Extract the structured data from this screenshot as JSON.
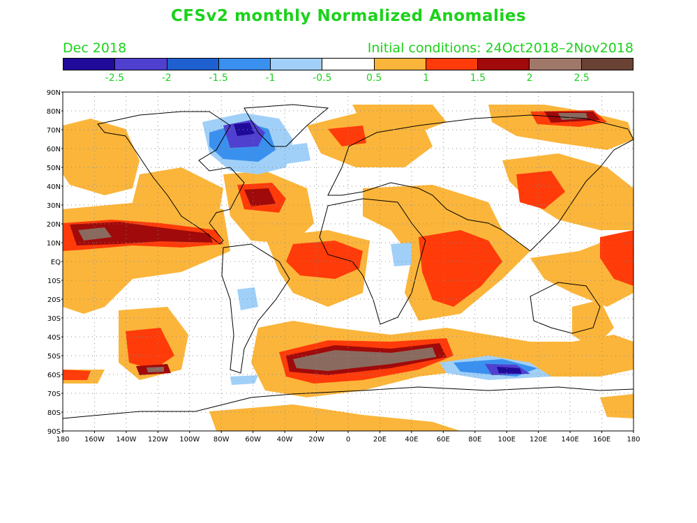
{
  "title": "CFSv2 monthly Normalized Anomalies",
  "valid_month": "Dec 2018",
  "initial_conditions": "Initial conditions: 24Oct2018–2Nov2018",
  "colorbar": {
    "colors": [
      "#1f0a9a",
      "#5040d0",
      "#1f60d0",
      "#3a90ee",
      "#a0d0f8",
      "#ffffff",
      "#fbb53a",
      "#ff3b0a",
      "#a00a0a",
      "#a0786a",
      "#6a4234"
    ],
    "labels": [
      "-2.5",
      "-2",
      "-1.5",
      "-1",
      "-0.5",
      "0.5",
      "1",
      "1.5",
      "2",
      "2.5"
    ]
  },
  "map": {
    "lat_labels": [
      "90N",
      "80N",
      "70N",
      "60N",
      "50N",
      "40N",
      "30N",
      "20N",
      "10N",
      "EQ",
      "10S",
      "20S",
      "30S",
      "40S",
      "50S",
      "60S",
      "70S",
      "80S",
      "90S"
    ],
    "lon_labels": [
      "180",
      "160W",
      "140W",
      "120W",
      "100W",
      "80W",
      "60W",
      "40W",
      "20W",
      "0",
      "20E",
      "40E",
      "60E",
      "80E",
      "100E",
      "120E",
      "140E",
      "160E",
      "180"
    ]
  }
}
